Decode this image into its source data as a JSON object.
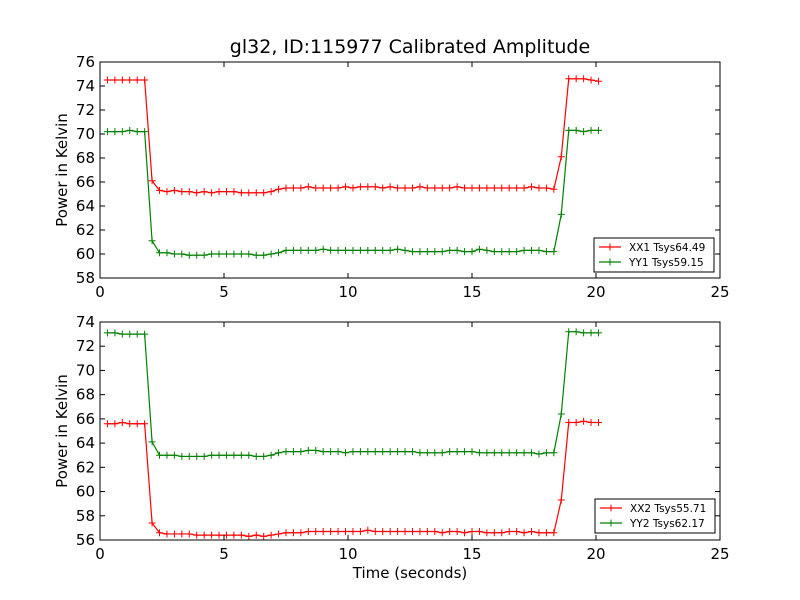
{
  "figure": {
    "title": "gl32, ID:115977 Calibrated Amplitude",
    "xlabel": "Time (seconds)"
  },
  "chart_data": [
    {
      "type": "line",
      "ylabel": "Power in Kelvin",
      "xlim": [
        0,
        25
      ],
      "ylim": [
        58,
        76
      ],
      "xticks": [
        0,
        5,
        10,
        15,
        20,
        25
      ],
      "yticks": [
        58,
        60,
        62,
        64,
        66,
        68,
        70,
        72,
        74,
        76
      ],
      "grid": false,
      "legend_position": "lower-right",
      "x": [
        0.3,
        0.6,
        0.9,
        1.2,
        1.5,
        1.8,
        2.1,
        2.4,
        2.7,
        3.0,
        3.3,
        3.6,
        3.9,
        4.2,
        4.5,
        4.8,
        5.1,
        5.4,
        5.7,
        6.0,
        6.3,
        6.6,
        6.9,
        7.2,
        7.5,
        7.8,
        8.1,
        8.4,
        8.7,
        9.0,
        9.3,
        9.6,
        9.9,
        10.2,
        10.5,
        10.8,
        11.1,
        11.4,
        11.7,
        12.0,
        12.3,
        12.6,
        12.9,
        13.2,
        13.5,
        13.8,
        14.1,
        14.4,
        14.7,
        15.0,
        15.3,
        15.6,
        15.9,
        16.2,
        16.5,
        16.8,
        17.1,
        17.4,
        17.7,
        18.0,
        18.3,
        18.6,
        18.9,
        19.2,
        19.5,
        19.8,
        20.1
      ],
      "series": [
        {
          "name": "XX1 Tsys64.49",
          "color": "#ff0000",
          "values": [
            74.5,
            74.5,
            74.5,
            74.5,
            74.5,
            74.5,
            66.1,
            65.3,
            65.2,
            65.3,
            65.2,
            65.2,
            65.1,
            65.2,
            65.1,
            65.2,
            65.2,
            65.2,
            65.1,
            65.1,
            65.1,
            65.1,
            65.2,
            65.4,
            65.5,
            65.5,
            65.5,
            65.6,
            65.5,
            65.5,
            65.5,
            65.5,
            65.6,
            65.5,
            65.6,
            65.6,
            65.6,
            65.5,
            65.6,
            65.5,
            65.5,
            65.5,
            65.6,
            65.5,
            65.5,
            65.5,
            65.5,
            65.6,
            65.5,
            65.5,
            65.5,
            65.5,
            65.5,
            65.5,
            65.5,
            65.5,
            65.5,
            65.6,
            65.5,
            65.5,
            65.4,
            68.1,
            74.6,
            74.6,
            74.6,
            74.5,
            74.4
          ]
        },
        {
          "name": "YY1 Tsys59.15",
          "color": "#008000",
          "values": [
            70.2,
            70.2,
            70.2,
            70.3,
            70.2,
            70.2,
            61.1,
            60.1,
            60.1,
            60.0,
            60.0,
            59.9,
            59.9,
            59.9,
            60.0,
            60.0,
            60.0,
            60.0,
            60.0,
            60.0,
            59.9,
            59.9,
            60.0,
            60.1,
            60.3,
            60.3,
            60.3,
            60.3,
            60.3,
            60.4,
            60.3,
            60.3,
            60.3,
            60.3,
            60.3,
            60.3,
            60.3,
            60.3,
            60.3,
            60.4,
            60.3,
            60.2,
            60.2,
            60.2,
            60.2,
            60.2,
            60.3,
            60.3,
            60.2,
            60.2,
            60.4,
            60.3,
            60.2,
            60.2,
            60.2,
            60.2,
            60.3,
            60.3,
            60.3,
            60.2,
            60.2,
            63.3,
            70.3,
            70.3,
            70.2,
            70.3,
            70.3
          ]
        }
      ]
    },
    {
      "type": "line",
      "ylabel": "Power in Kelvin",
      "xlabel": "Time (seconds)",
      "xlim": [
        0,
        25
      ],
      "ylim": [
        56,
        74
      ],
      "xticks": [
        0,
        5,
        10,
        15,
        20,
        25
      ],
      "yticks": [
        56,
        58,
        60,
        62,
        64,
        66,
        68,
        70,
        72,
        74
      ],
      "grid": false,
      "legend_position": "lower-right",
      "x": [
        0.3,
        0.6,
        0.9,
        1.2,
        1.5,
        1.8,
        2.1,
        2.4,
        2.7,
        3.0,
        3.3,
        3.6,
        3.9,
        4.2,
        4.5,
        4.8,
        5.1,
        5.4,
        5.7,
        6.0,
        6.3,
        6.6,
        6.9,
        7.2,
        7.5,
        7.8,
        8.1,
        8.4,
        8.7,
        9.0,
        9.3,
        9.6,
        9.9,
        10.2,
        10.5,
        10.8,
        11.1,
        11.4,
        11.7,
        12.0,
        12.3,
        12.6,
        12.9,
        13.2,
        13.5,
        13.8,
        14.1,
        14.4,
        14.7,
        15.0,
        15.3,
        15.6,
        15.9,
        16.2,
        16.5,
        16.8,
        17.1,
        17.4,
        17.7,
        18.0,
        18.3,
        18.6,
        18.9,
        19.2,
        19.5,
        19.8,
        20.1
      ],
      "series": [
        {
          "name": "XX2 Tsys55.71",
          "color": "#ff0000",
          "values": [
            65.6,
            65.6,
            65.7,
            65.6,
            65.6,
            65.6,
            57.4,
            56.6,
            56.5,
            56.5,
            56.5,
            56.5,
            56.4,
            56.4,
            56.4,
            56.4,
            56.4,
            56.4,
            56.4,
            56.3,
            56.4,
            56.3,
            56.4,
            56.5,
            56.6,
            56.6,
            56.6,
            56.7,
            56.7,
            56.7,
            56.7,
            56.7,
            56.7,
            56.7,
            56.7,
            56.8,
            56.7,
            56.7,
            56.7,
            56.7,
            56.7,
            56.7,
            56.7,
            56.7,
            56.7,
            56.6,
            56.7,
            56.7,
            56.6,
            56.7,
            56.7,
            56.6,
            56.6,
            56.6,
            56.7,
            56.7,
            56.6,
            56.7,
            56.6,
            56.6,
            56.6,
            59.3,
            65.7,
            65.7,
            65.8,
            65.7,
            65.7
          ]
        },
        {
          "name": "YY2 Tsys62.17",
          "color": "#008000",
          "values": [
            73.1,
            73.1,
            73.0,
            73.0,
            73.0,
            73.0,
            64.1,
            63.0,
            63.0,
            63.0,
            62.9,
            62.9,
            62.9,
            62.9,
            63.0,
            63.0,
            63.0,
            63.0,
            63.0,
            63.0,
            62.9,
            62.9,
            63.0,
            63.2,
            63.3,
            63.3,
            63.3,
            63.4,
            63.4,
            63.3,
            63.3,
            63.3,
            63.2,
            63.3,
            63.3,
            63.3,
            63.3,
            63.3,
            63.3,
            63.3,
            63.3,
            63.3,
            63.2,
            63.2,
            63.2,
            63.2,
            63.3,
            63.3,
            63.3,
            63.3,
            63.2,
            63.2,
            63.2,
            63.2,
            63.2,
            63.2,
            63.2,
            63.2,
            63.1,
            63.2,
            63.2,
            66.4,
            73.2,
            73.2,
            73.1,
            73.1,
            73.1
          ]
        }
      ]
    }
  ]
}
